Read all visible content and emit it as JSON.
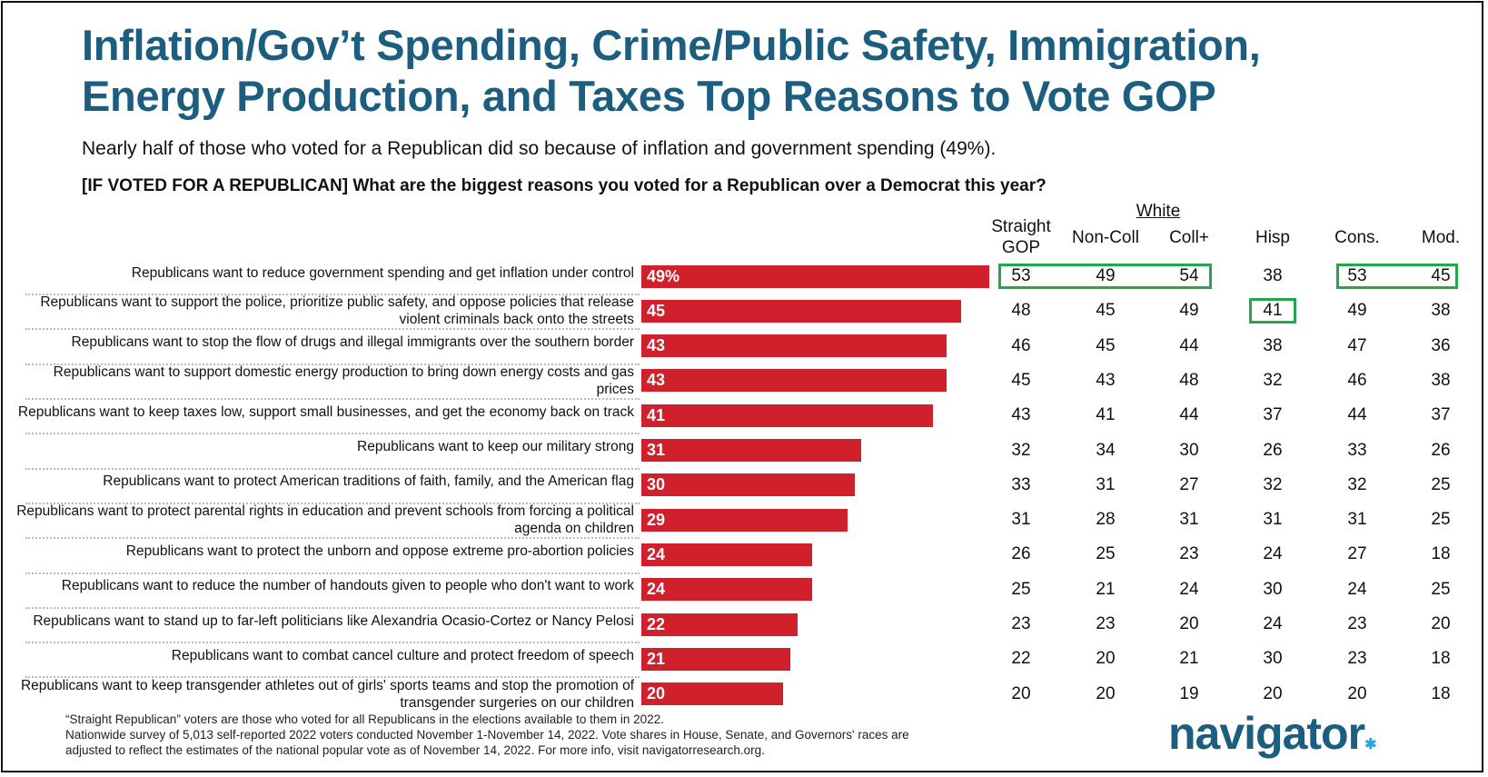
{
  "title_lines": [
    "Inflation/Gov’t Spending, Crime/Public Safety, Immigration,",
    "Energy Production, and Taxes Top Reasons to Vote GOP"
  ],
  "subtitle": "Nearly half of those who voted for a Republican did so because of inflation and government spending (49%).",
  "question": "[IF VOTED FOR A REPUBLICAN] What are the biggest reasons you voted for a Republican over a Democrat this year?",
  "group_header": "White",
  "footnotes": [
    "“Straight Republican” voters are those who voted for all Republicans in the elections available to them in 2022.",
    "Nationwide survey of 5,013 self-reported 2022 voters conducted November 1-November 14, 2022. Vote shares in House, Senate, and Governors' races are",
    "adjusted to reflect the estimates of the national popular vote as of November 14, 2022. For more info, visit navigatorresearch.org."
  ],
  "logo": "navigator",
  "colors": {
    "bar": "#d0202b",
    "title": "#1b5e80",
    "highlight": "#22a84a"
  },
  "chart_data": {
    "type": "bar",
    "orientation": "horizontal",
    "first_value_suffix": "%",
    "categories": [
      "Republicans want to reduce government spending and get inflation under control",
      "Republicans want to support the police, prioritize public safety, and oppose policies that release violent criminals back onto the streets",
      "Republicans want to stop the flow of drugs and illegal immigrants over the southern border",
      "Republicans want to support domestic energy production to bring down energy costs and gas prices",
      "Republicans want to keep taxes low, support small businesses, and get the economy back on track",
      "Republicans want to keep our military strong",
      "Republicans want to protect American traditions of faith, family, and the American flag",
      "Republicans want to protect parental rights in education and prevent schools from forcing a political agenda on children",
      "Republicans want to protect the unborn and oppose extreme pro-abortion policies",
      "Republicans want to reduce the number of handouts given to people who don't want to work",
      "Republicans want to stand up to far-left politicians like Alexandria Ocasio-Cortez or Nancy Pelosi",
      "Republicans want to combat cancel culture and protect freedom of speech",
      "Republicans want to keep transgender athletes out of girls' sports teams and stop the promotion of transgender surgeries on our children"
    ],
    "values": [
      49,
      45,
      43,
      43,
      41,
      31,
      30,
      29,
      24,
      24,
      22,
      21,
      20
    ],
    "columns": [
      "Straight GOP",
      "Non-Coll",
      "Coll+",
      "Hisp",
      "Cons.",
      "Mod."
    ],
    "table": [
      [
        53,
        49,
        54,
        38,
        53,
        45
      ],
      [
        48,
        45,
        49,
        41,
        49,
        38
      ],
      [
        46,
        45,
        44,
        38,
        47,
        36
      ],
      [
        45,
        43,
        48,
        32,
        46,
        38
      ],
      [
        43,
        41,
        44,
        37,
        44,
        37
      ],
      [
        32,
        34,
        30,
        26,
        33,
        26
      ],
      [
        33,
        31,
        27,
        32,
        32,
        25
      ],
      [
        31,
        28,
        31,
        31,
        31,
        25
      ],
      [
        26,
        25,
        23,
        24,
        27,
        18
      ],
      [
        25,
        21,
        24,
        30,
        24,
        25
      ],
      [
        23,
        23,
        20,
        24,
        23,
        20
      ],
      [
        22,
        20,
        21,
        30,
        23,
        18
      ],
      [
        20,
        20,
        19,
        20,
        20,
        18
      ]
    ],
    "highlighted_cells": [
      [
        0,
        0
      ],
      [
        0,
        1
      ],
      [
        0,
        2
      ],
      [
        0,
        4
      ],
      [
        0,
        5
      ],
      [
        1,
        3
      ]
    ],
    "xlim": [
      0,
      100
    ]
  }
}
